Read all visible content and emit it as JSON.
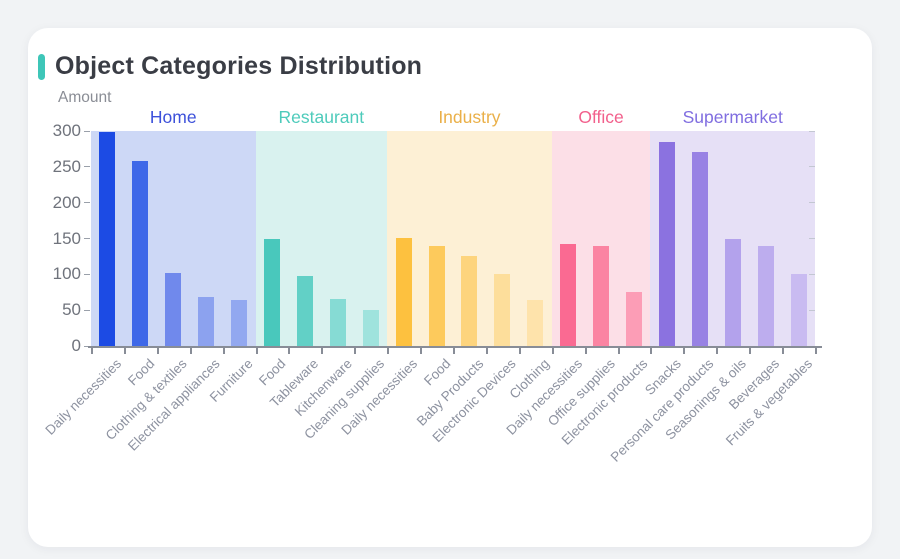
{
  "chart_data": {
    "type": "bar",
    "title": "Object Categories Distribution",
    "ylabel": "Amount",
    "ylim": [
      0,
      300
    ],
    "yticks": [
      0,
      50,
      100,
      150,
      200,
      250,
      300
    ],
    "accent_color": "#3EC6B8",
    "legend_position": "none",
    "grid": "off",
    "groups": [
      {
        "name": "Home",
        "name_color": "#3D51DA",
        "band_color": "#CDD8F6",
        "categories": [
          "Daily necessities",
          "Food",
          "Clothing & textiles",
          "Electrical appliances",
          "Furniture"
        ],
        "values": [
          298,
          258,
          102,
          68,
          64
        ],
        "bar_colors": [
          "#1C4BE4",
          "#3E68E8",
          "#7089EC",
          "#8CA2EF",
          "#92A8F0"
        ]
      },
      {
        "name": "Restaurant",
        "name_color": "#4ECBBB",
        "band_color": "#D9F2EF",
        "categories": [
          "Food",
          "Tableware",
          "Kitchenware",
          "Cleaning supplies"
        ],
        "values": [
          149,
          98,
          66,
          50
        ],
        "bar_colors": [
          "#49C8BC",
          "#62D0C6",
          "#86DBD4",
          "#9FE3DD"
        ]
      },
      {
        "name": "Industry",
        "name_color": "#EAB049",
        "band_color": "#FDF0D5",
        "categories": [
          "Daily necessities",
          "Food",
          "Baby Products",
          "Electronic Devices",
          "Clothing"
        ],
        "values": [
          151,
          140,
          126,
          100,
          64
        ],
        "bar_colors": [
          "#FDC13F",
          "#FDCA5C",
          "#FDD47D",
          "#FDDE9B",
          "#FEE3AB"
        ]
      },
      {
        "name": "Office",
        "name_color": "#F2608C",
        "band_color": "#FCDFE7",
        "categories": [
          "Daily necessities",
          "Office supplies",
          "Electronic products"
        ],
        "values": [
          143,
          140,
          76
        ],
        "bar_colors": [
          "#FA6A92",
          "#FB84A2",
          "#FC9DB6"
        ]
      },
      {
        "name": "Supermarket",
        "name_color": "#806EE0",
        "band_color": "#E6E0F6",
        "categories": [
          "Snacks",
          "Personal care products",
          "Seasonings & oils",
          "Beverages",
          "Fruits & vegetables"
        ],
        "values": [
          284,
          271,
          149,
          140,
          101
        ],
        "bar_colors": [
          "#8B72E0",
          "#9882E4",
          "#B3A2EC",
          "#BDADEE",
          "#C9BBF1"
        ]
      }
    ]
  }
}
